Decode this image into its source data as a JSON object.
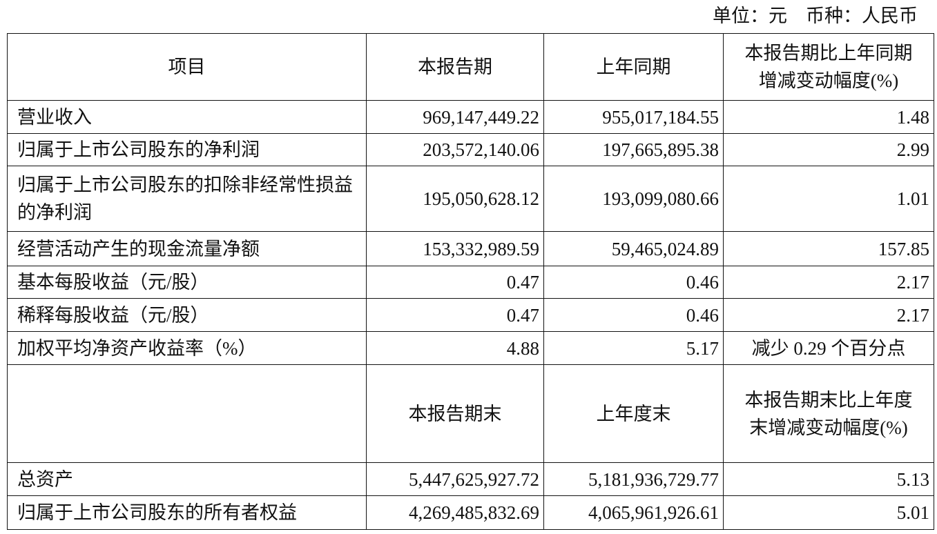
{
  "unit_line": "单位：元　币种：人民币",
  "header": [
    "项目",
    "本报告期",
    "上年同期",
    "本报告期比上年同期增减变动幅度(%)"
  ],
  "rows": [
    [
      "营业收入",
      "969,147,449.22",
      "955,017,184.55",
      "1.48"
    ],
    [
      "归属于上市公司股东的净利润",
      "203,572,140.06",
      "197,665,895.38",
      "2.99"
    ],
    [
      "归属于上市公司股东的扣除非经常性损益的净利润",
      "195,050,628.12",
      "193,099,080.66",
      "1.01"
    ],
    [
      "经营活动产生的现金流量净额",
      "153,332,989.59",
      "59,465,024.89",
      "157.85"
    ],
    [
      "基本每股收益（元/股）",
      "0.47",
      "0.46",
      "2.17"
    ],
    [
      "稀释每股收益（元/股）",
      "0.47",
      "0.46",
      "2.17"
    ],
    [
      "加权平均净资产收益率（%）",
      "4.88",
      "5.17",
      "减少 0.29 个百分点"
    ]
  ],
  "header2": [
    "",
    "本报告期末",
    "上年度末",
    "本报告期末比上年度末增减变动幅度(%)"
  ],
  "rows2": [
    [
      "总资产",
      "5,447,625,927.72",
      "5,181,936,729.77",
      "5.13"
    ],
    [
      "归属于上市公司股东的所有者权益",
      "4,269,485,832.69",
      "4,065,961,926.61",
      "5.01"
    ]
  ]
}
